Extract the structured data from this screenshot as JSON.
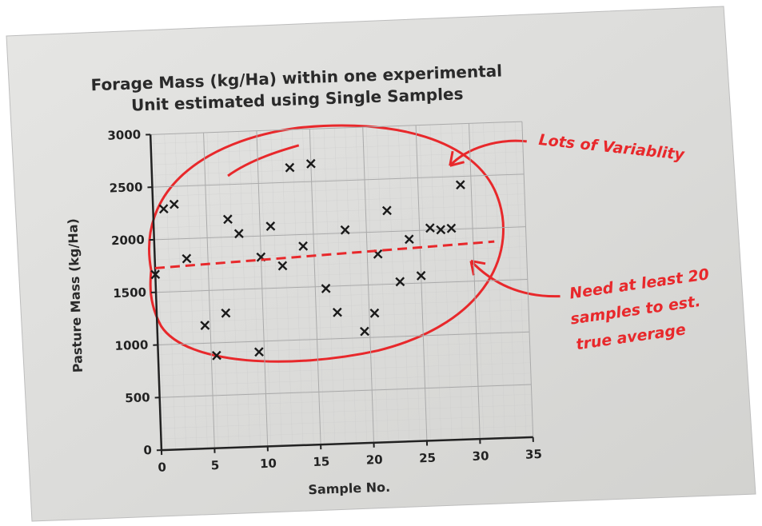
{
  "chart_data": {
    "type": "scatter",
    "title_lines": [
      "Forage Mass (kg/Ha) within one experimental",
      "Unit estimated using Single  Samples"
    ],
    "x_label": "Sample No.",
    "y_label": "Pasture Mass (kg/Ha)",
    "x": [
      0,
      1,
      2,
      3,
      4.5,
      5.5,
      6.5,
      7,
      8,
      9.5,
      10,
      11,
      12,
      13,
      14,
      15,
      16,
      17,
      18,
      19.5,
      20.5,
      21,
      22,
      23,
      24,
      25,
      26,
      27,
      28,
      29
    ],
    "values": [
      1670,
      2290,
      2330,
      1810,
      1170,
      880,
      1280,
      2170,
      2030,
      900,
      1800,
      2090,
      1710,
      2640,
      1890,
      2670,
      1480,
      1250,
      2030,
      1060,
      1230,
      1790,
      2200,
      1520,
      1920,
      1570,
      2020,
      2000,
      2010,
      2420
    ],
    "color": "#1a1a1a",
    "xlim": [
      0,
      35
    ],
    "ylim": [
      0,
      3000
    ],
    "xticks": [
      0,
      5,
      10,
      15,
      20,
      25,
      30,
      35
    ],
    "yticks": [
      0,
      500,
      1000,
      1500,
      2000,
      2500,
      3000
    ],
    "grid": true,
    "trend_line": {
      "x": [
        0,
        32
      ],
      "y": [
        1730,
        1870
      ],
      "color": "#e8282b"
    },
    "annotations": [
      {
        "lines": [
          "Lots of Variablity"
        ]
      },
      {
        "lines": [
          "Need at least 20",
          "samples to est.",
          "true average"
        ]
      }
    ]
  }
}
